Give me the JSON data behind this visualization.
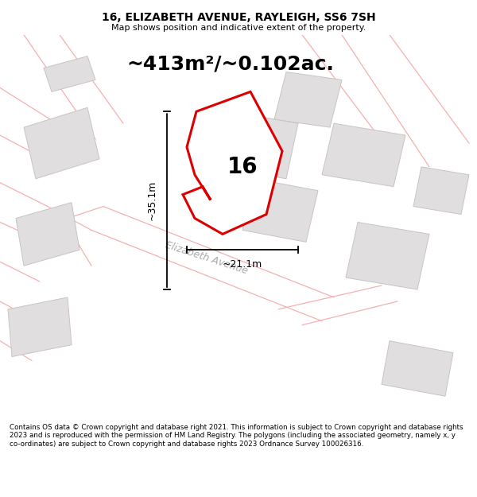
{
  "title_line1": "16, ELIZABETH AVENUE, RAYLEIGH, SS6 7SH",
  "title_line2": "Map shows position and indicative extent of the property.",
  "area_text": "~413m²/~0.102ac.",
  "property_number": "16",
  "dim_width": "~21.1m",
  "dim_height": "~35.1m",
  "street_label": "Elizabeth Avenue",
  "footer_text": "Contains OS data © Crown copyright and database right 2021. This information is subject to Crown copyright and database rights 2023 and is reproduced with the permission of HM Land Registry. The polygons (including the associated geometry, namely x, y co-ordinates) are subject to Crown copyright and database rights 2023 Ordnance Survey 100026316.",
  "bg_color": "#ffffff",
  "map_bg": "#ffffff",
  "plot_color": "#dd0000",
  "neighbor_fc": "#e0dede",
  "neighbor_ec": "#c8c4c4",
  "road_color": "#f5b0b0",
  "fig_width": 6.0,
  "fig_height": 6.25,
  "dpi": 100,
  "title_fontsize": 10,
  "subtitle_fontsize": 8,
  "area_fontsize": 18
}
